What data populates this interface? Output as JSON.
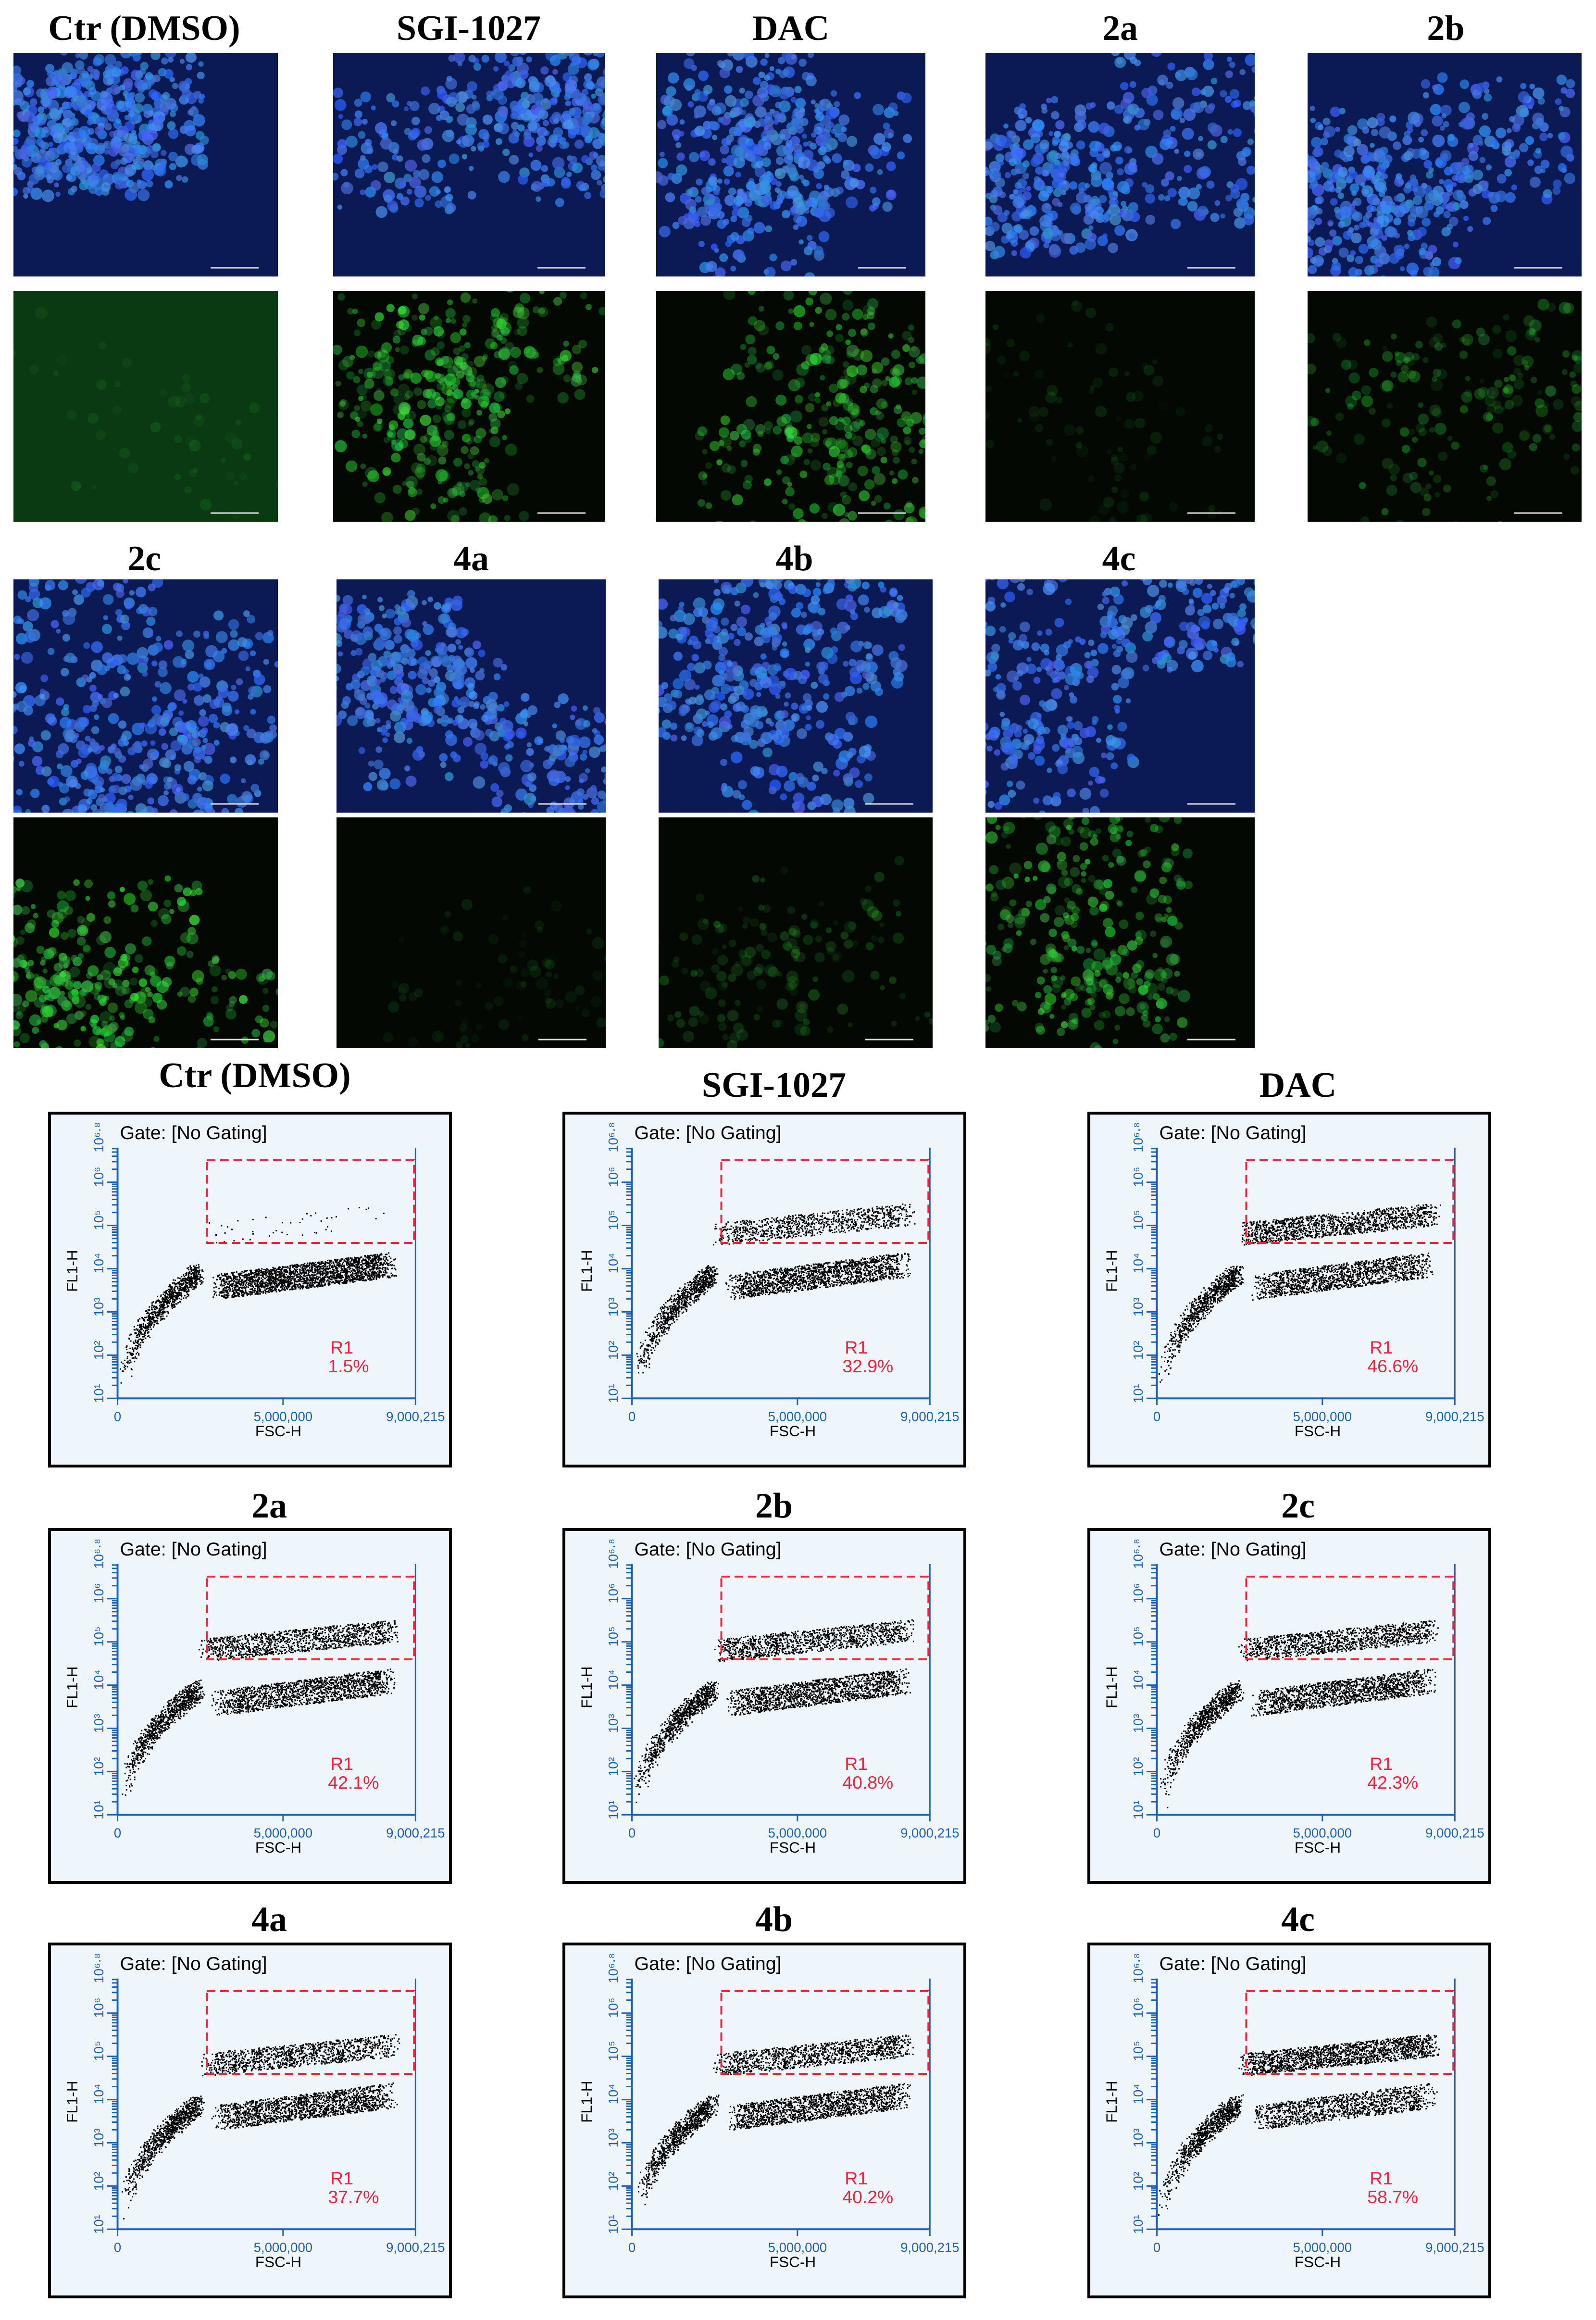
{
  "microscopy": {
    "row1": [
      {
        "label": "Ctr (DMSO)",
        "green_level": 0.05
      },
      {
        "label": "SGI-1027",
        "green_level": 0.75
      },
      {
        "label": "DAC",
        "green_level": 0.7
      },
      {
        "label": "2a",
        "green_level": 0.12
      },
      {
        "label": "2b",
        "green_level": 0.4
      }
    ],
    "row2": [
      {
        "label": "2c",
        "green_level": 0.85
      },
      {
        "label": "4a",
        "green_level": 0.1
      },
      {
        "label": "4b",
        "green_level": 0.3
      },
      {
        "label": "4c",
        "green_level": 0.7
      }
    ]
  },
  "flow": {
    "gate_text": "Gate: [No Gating]",
    "y_axis_label": "FL1-H",
    "x_axis_label": "FSC-H",
    "x_ticks": [
      "0",
      "5,000,000",
      "9,000,215"
    ],
    "y_ticks": [
      "10¹",
      "10²",
      "10³",
      "10⁴",
      "10⁵",
      "10⁶",
      "10⁶·⁸"
    ],
    "gate_name": "R1",
    "colors": {
      "gate": "#ff1f3d",
      "axis": "#1f5fb0",
      "panel_bg": "#eef6fb"
    },
    "panels": [
      {
        "title": "Ctr (DMSO)",
        "r1_percent": "1.5%",
        "upper_fraction": 0.015
      },
      {
        "title": "SGI-1027",
        "r1_percent": "32.9%",
        "upper_fraction": 0.329
      },
      {
        "title": "DAC",
        "r1_percent": "46.6%",
        "upper_fraction": 0.466
      },
      {
        "title": "2a",
        "r1_percent": "42.1%",
        "upper_fraction": 0.421
      },
      {
        "title": "2b",
        "r1_percent": "40.8%",
        "upper_fraction": 0.408
      },
      {
        "title": "2c",
        "r1_percent": "42.3%",
        "upper_fraction": 0.423
      },
      {
        "title": "4a",
        "r1_percent": "37.7%",
        "upper_fraction": 0.377
      },
      {
        "title": "4b",
        "r1_percent": "40.2%",
        "upper_fraction": 0.402
      },
      {
        "title": "4c",
        "r1_percent": "58.7%",
        "upper_fraction": 0.587
      }
    ]
  }
}
